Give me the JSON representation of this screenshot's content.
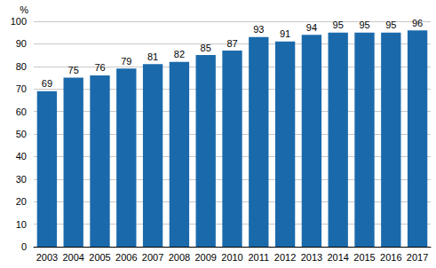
{
  "chart_data": {
    "type": "bar",
    "ylabel": "%",
    "categories": [
      "2003",
      "2004",
      "2005",
      "2006",
      "2007",
      "2008",
      "2009",
      "2010",
      "2011",
      "2012",
      "2013",
      "2014",
      "2015",
      "2016",
      "2017"
    ],
    "values": [
      69,
      75,
      76,
      79,
      81,
      82,
      85,
      87,
      93,
      91,
      94,
      95,
      95,
      95,
      96
    ],
    "color": "#1a6aab",
    "ylim": [
      0,
      100
    ],
    "yticks": [
      0,
      10,
      20,
      30,
      40,
      50,
      60,
      70,
      80,
      90,
      100
    ],
    "grid": true,
    "data_labels": true
  }
}
